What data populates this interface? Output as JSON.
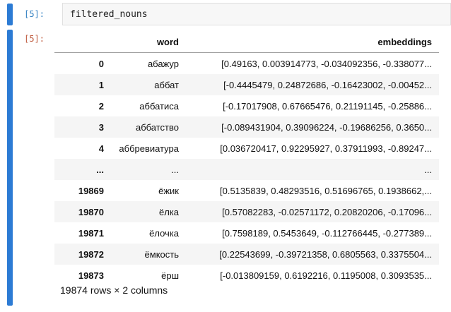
{
  "cell": {
    "input_prompt": "[5]:",
    "output_prompt": "[5]:",
    "code": "filtered_nouns"
  },
  "table": {
    "columns": [
      "word",
      "embeddings"
    ],
    "rows": [
      {
        "index": "0",
        "word": "абажур",
        "embeddings": "[0.49163, 0.003914773, -0.034092356, -0.338077..."
      },
      {
        "index": "1",
        "word": "аббат",
        "embeddings": "[-0.4445479, 0.24872686, -0.16423002, -0.00452..."
      },
      {
        "index": "2",
        "word": "аббатиса",
        "embeddings": "[-0.17017908, 0.67665476, 0.21191145, -0.25886..."
      },
      {
        "index": "3",
        "word": "аббатство",
        "embeddings": "[-0.089431904, 0.39096224, -0.19686256, 0.3650..."
      },
      {
        "index": "4",
        "word": "аббревиатура",
        "embeddings": "[0.036720417, 0.92295927, 0.37911993, -0.89247..."
      },
      {
        "index": "...",
        "word": "...",
        "embeddings": "..."
      },
      {
        "index": "19869",
        "word": "ёжик",
        "embeddings": "[0.5135839, 0.48293516, 0.51696765, 0.1938662,..."
      },
      {
        "index": "19870",
        "word": "ёлка",
        "embeddings": "[0.57082283, -0.02571172, 0.20820206, -0.17096..."
      },
      {
        "index": "19871",
        "word": "ёлочка",
        "embeddings": "[0.7598189, 0.5453649, -0.112766445, -0.277389..."
      },
      {
        "index": "19872",
        "word": "ёмкость",
        "embeddings": "[0.22543699, -0.39721358, 0.6805563, 0.3375504..."
      },
      {
        "index": "19873",
        "word": "ёрш",
        "embeddings": "[-0.013809159, 0.6192216, 0.1195008, 0.3093535..."
      }
    ],
    "summary": "19874 rows × 2 columns"
  },
  "colors": {
    "collapser_blue": "#2c7bd4",
    "input_prompt": "#307fc1",
    "output_prompt": "#bf5b3e",
    "row_stripe": "#f5f5f5",
    "code_background": "#f7f7f7",
    "code_border": "#e0e0e0",
    "header_rule": "#a0a0a0"
  }
}
